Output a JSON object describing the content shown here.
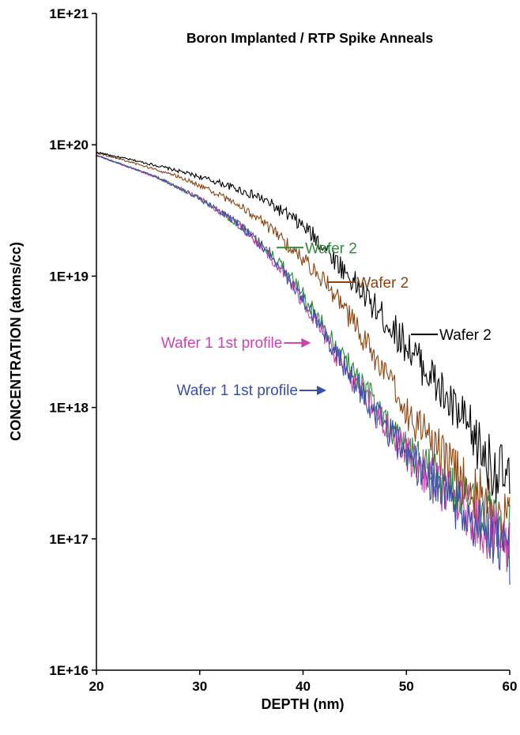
{
  "chart_data": {
    "type": "line",
    "title": "Boron Implanted / RTP Spike Anneals",
    "xlabel": "DEPTH (nm)",
    "ylabel": "CONCENTRATION (atoms/cc)",
    "xlim": [
      20,
      60
    ],
    "ylim": [
      1e+16,
      1e+21
    ],
    "yscale": "log",
    "grid": false,
    "xticks": [
      "20",
      "30",
      "40",
      "50",
      "60"
    ],
    "yticks": [
      "1E+16",
      "1E+17",
      "1E+18",
      "1E+19",
      "1E+20",
      "1E+21"
    ],
    "series": [
      {
        "name": "Wafer 2",
        "color": "#000000",
        "x": [
          20,
          22,
          24,
          26,
          28,
          30,
          32,
          34,
          36,
          38,
          40,
          42,
          44,
          46,
          48,
          50,
          52,
          54,
          56,
          58,
          60
        ],
        "y": [
          8.8e+19,
          8.1e+19,
          7.5e+19,
          6.9e+19,
          6.3e+19,
          5.7e+19,
          5.1e+19,
          4.5e+19,
          3.9e+19,
          3.1e+19,
          2.4e+19,
          1.7e+19,
          1.1e+19,
          7e+18,
          4.6e+18,
          3e+18,
          1.9e+18,
          1.1e+18,
          6.8e+17,
          3.8e+17,
          2.6e+17
        ]
      },
      {
        "name": "Wafer 2",
        "color": "#8b4513",
        "x": [
          20,
          22,
          24,
          26,
          28,
          30,
          32,
          34,
          36,
          38,
          40,
          42,
          44,
          46,
          48,
          50,
          52,
          54,
          56,
          58,
          60
        ],
        "y": [
          8.7e+19,
          7.9e+19,
          7.1e+19,
          6.4e+19,
          5.7e+19,
          4.9e+19,
          4.1e+19,
          3.4e+19,
          2.6e+19,
          1.9e+19,
          1.35e+19,
          9.4e+18,
          5.6e+18,
          3.2e+18,
          1.7e+18,
          9.5e+17,
          6e+17,
          3.8e+17,
          2.6e+17,
          1.8e+17,
          1.3e+17
        ]
      },
      {
        "name": "Wafer 2",
        "color": "#2e8b3a",
        "x": [
          20,
          22,
          24,
          26,
          28,
          30,
          32,
          34,
          36,
          38,
          40,
          42,
          44,
          46,
          48,
          50,
          52,
          54,
          56,
          58,
          60
        ],
        "y": [
          8.3e+19,
          7.3e+19,
          6.4e+19,
          5.6e+19,
          4.7e+19,
          3.9e+19,
          3.1e+19,
          2.4e+19,
          1.75e+19,
          1.2e+19,
          7.2e+18,
          4.2e+18,
          2.4e+18,
          1.4e+18,
          8e+17,
          5e+17,
          3.5e+17,
          2.5e+17,
          1.8e+17,
          1.35e+17,
          1e+17
        ]
      },
      {
        "name": "Wafer 1 1st profile",
        "color": "#cc44aa",
        "x": [
          20,
          22,
          24,
          26,
          28,
          30,
          32,
          34,
          36,
          38,
          40,
          42,
          44,
          46,
          48,
          50,
          52,
          54,
          56,
          58,
          60
        ],
        "y": [
          8.3e+19,
          7.3e+19,
          6.4e+19,
          5.6e+19,
          4.7e+19,
          3.9e+19,
          3.1e+19,
          2.4e+19,
          1.7e+19,
          1.1e+19,
          6.5e+18,
          3.6e+18,
          2e+18,
          1.2e+18,
          7e+17,
          4.5e+17,
          3.1e+17,
          2.2e+17,
          1.6e+17,
          1.15e+17,
          8.5e+16
        ]
      },
      {
        "name": "Wafer 1 1st profile",
        "color": "#3b4fa8",
        "x": [
          20,
          22,
          24,
          26,
          28,
          30,
          32,
          34,
          36,
          38,
          40,
          42,
          44,
          46,
          48,
          50,
          52,
          54,
          56,
          58,
          60
        ],
        "y": [
          8.3e+19,
          7.3e+19,
          6.4e+19,
          5.6e+19,
          4.7e+19,
          3.9e+19,
          3.1e+19,
          2.4e+19,
          1.7e+19,
          1.1e+19,
          6.6e+18,
          3.7e+18,
          2.05e+18,
          1.2e+18,
          7e+17,
          4.4e+17,
          3e+17,
          2.1e+17,
          1.5e+17,
          1.1e+17,
          8e+16
        ]
      }
    ],
    "annotations": [
      {
        "text": "Wafer 2",
        "color": "#2e8b3a",
        "x": 40.5,
        "y": 1.65e+19
      },
      {
        "text": "Wafer 2",
        "color": "#8b4513",
        "x": 45.5,
        "y": 9e+18
      },
      {
        "text": "Wafer 2",
        "color": "#000000",
        "x": 53.5,
        "y": 3.6e+18
      },
      {
        "text": "Wafer 1 1st profile",
        "color": "#cc44aa",
        "x": 38.0,
        "y": 3.1e+18
      },
      {
        "text": "Wafer 1 1st profile",
        "color": "#3b4fa8",
        "x": 39.5,
        "y": 1.35e+18
      }
    ]
  }
}
